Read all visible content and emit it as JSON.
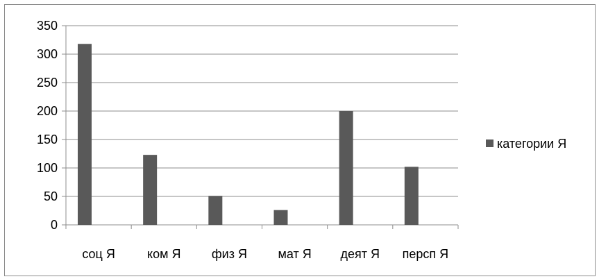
{
  "chart_data": {
    "type": "bar",
    "categories": [
      "соц Я",
      "ком Я",
      "физ Я",
      "мат Я",
      "деят Я",
      "персп Я"
    ],
    "series": [
      {
        "name": "категории Я",
        "values": [
          318,
          123,
          51,
          26,
          200,
          102
        ],
        "color": "#595959"
      }
    ],
    "ylim": [
      0,
      350
    ],
    "yticks": [
      0,
      50,
      100,
      150,
      200,
      250,
      300,
      350
    ],
    "grid": true,
    "legend_position": "right"
  }
}
